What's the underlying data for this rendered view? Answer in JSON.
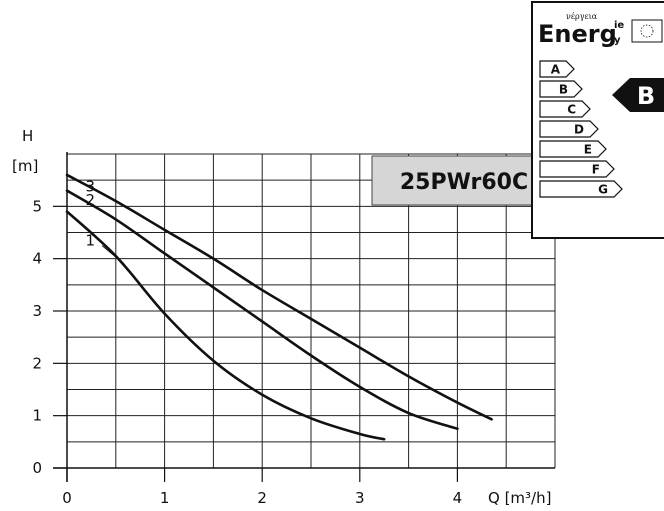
{
  "chart_data": {
    "type": "line",
    "title": "",
    "xlabel": "Q [m³/h]",
    "ylabel": "H",
    "ylabel_unit": "[m]",
    "xlim": [
      0,
      5
    ],
    "ylim": [
      0,
      6
    ],
    "x_ticks": [
      0,
      1,
      2,
      3,
      4
    ],
    "x_tick_labels": [
      "0",
      "1",
      "2",
      "3",
      "4"
    ],
    "y_ticks": [
      0,
      1,
      2,
      3,
      4,
      5
    ],
    "y_tick_labels": [
      "0",
      "1",
      "2",
      "3",
      "4",
      "5"
    ],
    "grid": true,
    "series": [
      {
        "name": "1",
        "x": [
          0.0,
          0.5,
          1.0,
          1.5,
          2.0,
          2.5,
          3.0,
          3.25
        ],
        "y": [
          4.9,
          4.05,
          2.95,
          2.05,
          1.4,
          0.95,
          0.65,
          0.55
        ]
      },
      {
        "name": "2",
        "x": [
          0.0,
          0.5,
          1.0,
          1.5,
          2.0,
          2.5,
          3.0,
          3.5,
          4.0
        ],
        "y": [
          5.3,
          4.75,
          4.1,
          3.45,
          2.8,
          2.15,
          1.55,
          1.05,
          0.75
        ]
      },
      {
        "name": "3",
        "x": [
          0.0,
          0.5,
          1.0,
          1.5,
          2.0,
          2.5,
          3.0,
          3.5,
          4.0,
          4.35
        ],
        "y": [
          5.6,
          5.1,
          4.55,
          4.0,
          3.4,
          2.85,
          2.3,
          1.75,
          1.25,
          0.93
        ]
      }
    ]
  },
  "model_label": "25PWr60C",
  "energy_label": {
    "title_big": "Energ",
    "title_small": "νέργεια",
    "title_side_top": "ie",
    "title_side_bottom": "y",
    "classes": [
      "A",
      "B",
      "C",
      "D",
      "E",
      "F",
      "G"
    ],
    "rating": "B"
  }
}
